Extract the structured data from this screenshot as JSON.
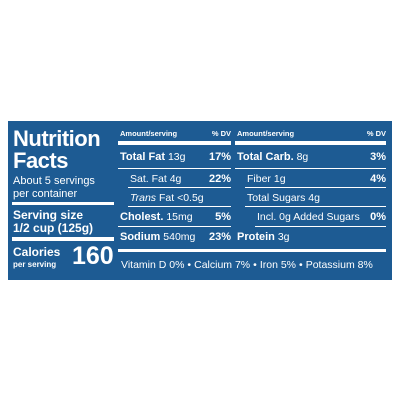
{
  "title": [
    "Nutrition",
    "Facts"
  ],
  "servings": [
    "About 5 servings",
    "per container"
  ],
  "serving_size": {
    "label": "Serving size",
    "value": "1/2 cup (125g)"
  },
  "calories": {
    "label": "Calories",
    "sub": "per serving",
    "value": "160"
  },
  "left_table": {
    "header": [
      "Amount/serving",
      "% DV"
    ],
    "rows": [
      {
        "name": "Total Fat",
        "amount": "13g",
        "dv": "17%"
      },
      {
        "name": "Sat. Fat",
        "amount": "4g",
        "dv": "22%"
      },
      {
        "name_italic": "Trans",
        "name": "Fat",
        "amount": "<0.5g"
      },
      {
        "name": "Cholest.",
        "amount": "15mg",
        "dv": "5%"
      },
      {
        "name": "Sodium",
        "amount": "540mg",
        "dv": "23%"
      }
    ]
  },
  "right_table": {
    "header": [
      "Amount/serving",
      "% DV"
    ],
    "rows": [
      {
        "name": "Total Carb.",
        "amount": "8g",
        "dv": "3%"
      },
      {
        "name": "Fiber",
        "amount": "1g",
        "dv": "4%"
      },
      {
        "name": "Total Sugars",
        "amount": "4g"
      },
      {
        "name": "Incl. 0g Added Sugars",
        "dv": "0%"
      },
      {
        "name": "Protein",
        "amount": "3g"
      }
    ]
  },
  "footer": [
    "Vitamin D 0%",
    "Calcium 7%",
    "Iron 5%",
    "Potassium 8%"
  ]
}
